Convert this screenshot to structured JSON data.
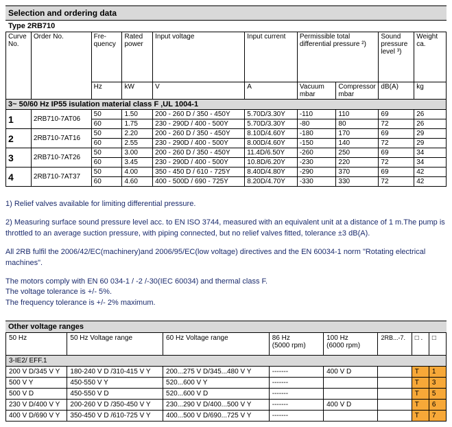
{
  "section_title": "Selection and ordering data",
  "type": "Type 2RB710",
  "headers": {
    "curve": "Curve No.",
    "order": "Order No.",
    "freq": "Fre-\nquency",
    "power": "Rated power",
    "input_v": "Input voltage",
    "input_c": "Input current",
    "perm": "Permissible total differential pressure ²)",
    "sound": "Sound pressure level ³)",
    "weight": "Weight ca.",
    "hz": "Hz",
    "kw": "kW",
    "v": "V",
    "a": "A",
    "vacuum": "Vacuum mbar",
    "compressor": "Compressor mbar",
    "dba": "dB(A)",
    "kg": "kg"
  },
  "band1": "3~ 50/60 Hz IP55 isulation material class F ,UL 1004-1",
  "rows": [
    {
      "curve": "1",
      "order": "2RB710-7AT06",
      "data": [
        [
          "50",
          "1.50",
          "200 - 260 D / 350 - 450Y",
          "5.70D/3.30Y",
          "-110",
          "110",
          "69",
          "26"
        ],
        [
          "60",
          "1.75",
          "230 - 290D / 400 - 500Y",
          "5.70D/3.30Y",
          "-80",
          "80",
          "72",
          "26"
        ]
      ]
    },
    {
      "curve": "2",
      "order": "2RB710-7AT16",
      "data": [
        [
          "50",
          "2.20",
          "200 - 260 D / 350 - 450Y",
          "8.10D/4.60Y",
          "-180",
          "170",
          "69",
          "29"
        ],
        [
          "60",
          "2.55",
          "230 - 290D / 400 - 500Y",
          "8.00D/4.60Y",
          "-150",
          "140",
          "72",
          "29"
        ]
      ]
    },
    {
      "curve": "3",
      "order": "2RB710-7AT26",
      "data": [
        [
          "50",
          "3.00",
          "200 - 260 D / 350 - 450Y",
          "11.4D/6.50Y",
          "-260",
          "250",
          "69",
          "34"
        ],
        [
          "60",
          "3.45",
          "230 - 290D / 400 - 500Y",
          "10.8D/6.20Y",
          "-230",
          "220",
          "72",
          "34"
        ]
      ]
    },
    {
      "curve": "4",
      "order": "2RB710-7AT37",
      "data": [
        [
          "50",
          "4.00",
          "350 - 450 D / 610 - 725Y",
          "8.40D/4.80Y",
          "-290",
          "370",
          "69",
          "42"
        ],
        [
          "60",
          "4.60",
          "400 - 500D /  690 - 725Y",
          "8.20D/4.70Y",
          "-330",
          "330",
          "72",
          "42"
        ]
      ]
    }
  ],
  "notes": [
    "1) Relief valves available for limiting differential pressure.",
    "2) Measuring surface sound pressure level acc. to EN ISO 3744, measured with an equivalent unit at a distance of 1 m.The pump is throttled to an average suction pressure, with piping connected, but no relief valves fitted, tolerance ±3 dB(A).",
    "All 2RB fulfil the 2006/42/EC(machinery)and 2006/95/EC(low voltage) directives and the EN 60034-1 norm \"Rotating electrical machines\".",
    "The motors comply with EN 60 034-1 / -2 /-30(IEC 60034) and thermal class F.\nThe voltage tolerance is +/- 5%.\nThe frequency tolerance is +/- 2% maximum."
  ],
  "voltage": {
    "title": "Other voltage ranges",
    "hdr": [
      "50 Hz",
      "50 Hz Voltage range",
      "60 Hz Voltage range",
      "86 Hz\n(5000 rpm)",
      "100 Hz\n(6000 rpm)",
      "2RB...-7.",
      "□ .",
      "□"
    ],
    "band": "3-IE2/ EFF.1",
    "rows": [
      [
        "200 V D/345 V Y",
        "180-240 V D /310-415 V Y",
        "200...275 V D/345...480 V Y",
        "-------",
        "400 V D",
        "",
        "T",
        "1"
      ],
      [
        "500 V Y",
        "               450-550 V Y",
        "               520...600 V Y",
        "-------",
        "",
        "",
        "T",
        "3"
      ],
      [
        "500 V D",
        "450-550 V D",
        "520...600 V D",
        "-------",
        "",
        "",
        "T",
        "5"
      ],
      [
        "230 V D/400 V Y",
        "200-260 V D /350-450 V Y",
        "230...290 V D/400...500 V Y",
        "-------",
        "400 V D",
        "",
        "T",
        "6"
      ],
      [
        "400 V D/690 V Y",
        "350-450 V D /610-725 V Y",
        "400...500 V D/690...725 V Y",
        "-------",
        "",
        "",
        "T",
        "7"
      ]
    ]
  },
  "colors": {
    "header_bg": "#d9d9d9",
    "orange": "#f7a838",
    "note_text": "#1a2a6c"
  }
}
